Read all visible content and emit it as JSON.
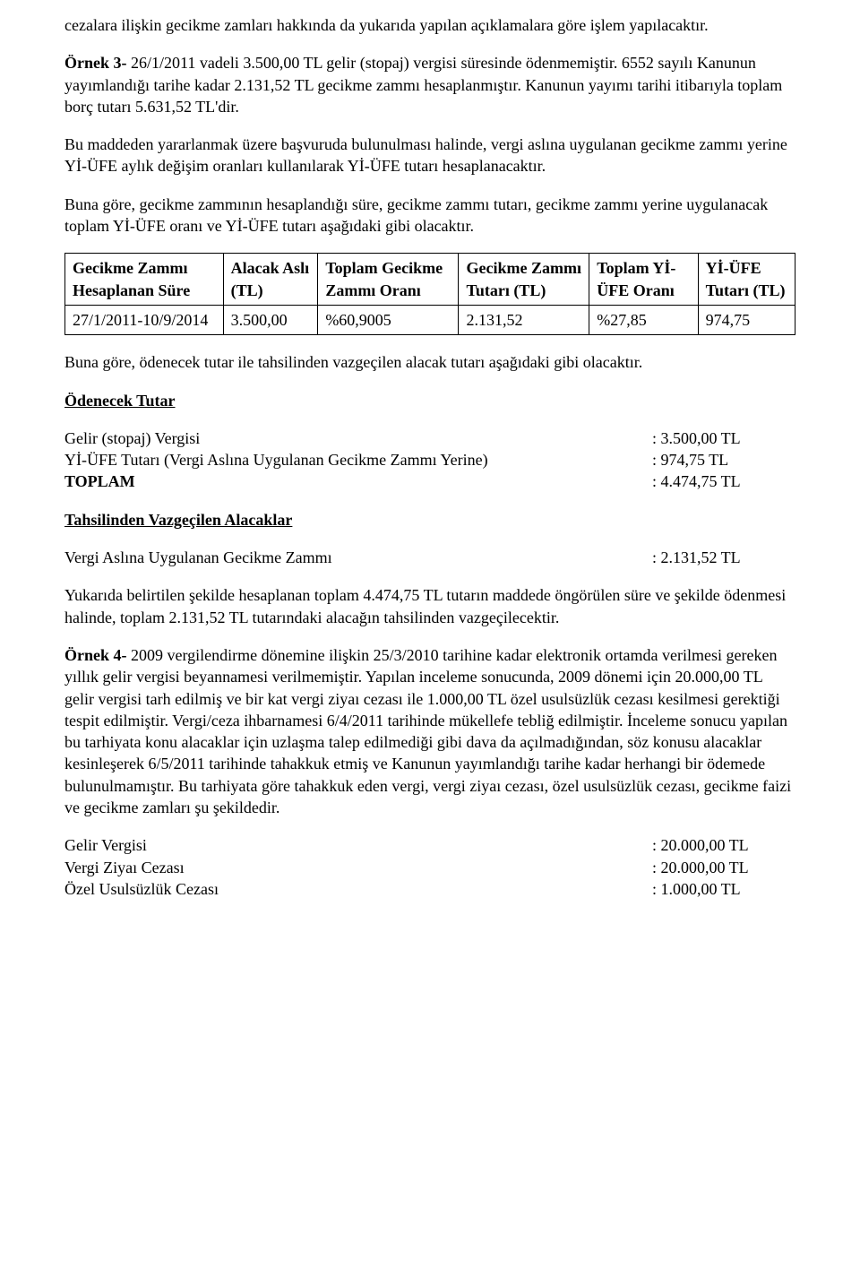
{
  "paragraphs": {
    "p1": "cezalara ilişkin gecikme zamları hakkında da yukarıda yapılan açıklamalara göre işlem yapılacaktır.",
    "p2_prefix": "Örnek 3-",
    "p2_rest": " 26/1/2011 vadeli 3.500,00 TL gelir (stopaj) vergisi süresinde ödenmemiştir. 6552 sayılı Kanunun yayımlandığı tarihe kadar 2.131,52 TL gecikme zammı hesaplanmıştır. Kanunun yayımı tarihi itibarıyla toplam borç tutarı 5.631,52 TL'dir.",
    "p3": "Bu maddeden yararlanmak üzere başvuruda bulunulması halinde, vergi aslına uygulanan gecikme zammı yerine Yİ-ÜFE aylık değişim oranları kullanılarak Yİ-ÜFE tutarı hesaplanacaktır.",
    "p4": "Buna göre, gecikme zammının hesaplandığı süre, gecikme zammı tutarı, gecikme zammı yerine uygulanacak toplam Yİ-ÜFE oranı ve Yİ-ÜFE tutarı aşağıdaki gibi olacaktır.",
    "p5": "Buna göre, ödenecek tutar ile tahsilinden vazgeçilen alacak tutarı aşağıdaki gibi olacaktır.",
    "p6": "Yukarıda belirtilen şekilde hesaplanan toplam 4.474,75 TL tutarın maddede öngörülen süre ve şekilde ödenmesi halinde, toplam 2.131,52 TL tutarındaki alacağın tahsilinden vazgeçilecektir.",
    "p7_prefix": "Örnek 4-",
    "p7_rest": " 2009 vergilendirme dönemine ilişkin 25/3/2010 tarihine kadar elektronik ortamda verilmesi gereken yıllık gelir vergisi beyannamesi verilmemiştir. Yapılan inceleme sonucunda, 2009 dönemi için 20.000,00 TL gelir vergisi tarh edilmiş ve bir kat vergi ziyaı cezası ile 1.000,00 TL özel usulsüzlük cezası kesilmesi gerektiği tespit edilmiştir. Vergi/ceza ihbarnamesi 6/4/2011 tarihinde mükellefe tebliğ edilmiştir. İnceleme sonucu yapılan bu tarhiyata konu alacaklar için uzlaşma talep edilmediği gibi dava da açılmadığından, söz konusu alacaklar kesinleşerek 6/5/2011 tarihinde tahakkuk etmiş ve Kanunun yayımlandığı tarihe kadar herhangi bir ödemede bulunulmamıştır. Bu tarhiyata göre tahakkuk eden vergi, vergi ziyaı cezası, özel usulsüzlük cezası, gecikme faizi ve gecikme zamları şu şekildedir."
  },
  "table": {
    "headers": [
      "Gecikme Zammı Hesaplanan Süre",
      "Alacak Aslı (TL)",
      "Toplam Gecikme Zammı Oranı",
      "Gecikme Zammı Tutarı (TL)",
      "Toplam Yİ-ÜFE Oranı",
      "Yİ-ÜFE Tutarı (TL)"
    ],
    "row": [
      "27/1/2011-10/9/2014",
      "3.500,00",
      "%60,9005",
      "2.131,52",
      "%27,85",
      "974,75"
    ]
  },
  "sections": {
    "odenecek_title": "Ödenecek Tutar",
    "tahsilinden_title": "Tahsilinden Vazgeçilen Alacaklar"
  },
  "odenecek": [
    {
      "label": "Gelir (stopaj) Vergisi",
      "value": ": 3.500,00 TL"
    },
    {
      "label": "Yİ-ÜFE Tutarı (Vergi Aslına Uygulanan Gecikme Zammı Yerine)",
      "value": ": 974,75 TL"
    },
    {
      "label_bold": "TOPLAM",
      "value": ": 4.474,75 TL"
    }
  ],
  "vazgecilen": [
    {
      "label": "Vergi Aslına Uygulanan Gecikme Zammı",
      "value": ": 2.131,52 TL"
    }
  ],
  "ornek4_items": [
    {
      "label": "Gelir Vergisi",
      "value": ": 20.000,00 TL"
    },
    {
      "label": "Vergi Ziyaı Cezası",
      "value": ": 20.000,00 TL"
    },
    {
      "label": "Özel Usulsüzlük Cezası",
      "value": ": 1.000,00 TL"
    }
  ]
}
